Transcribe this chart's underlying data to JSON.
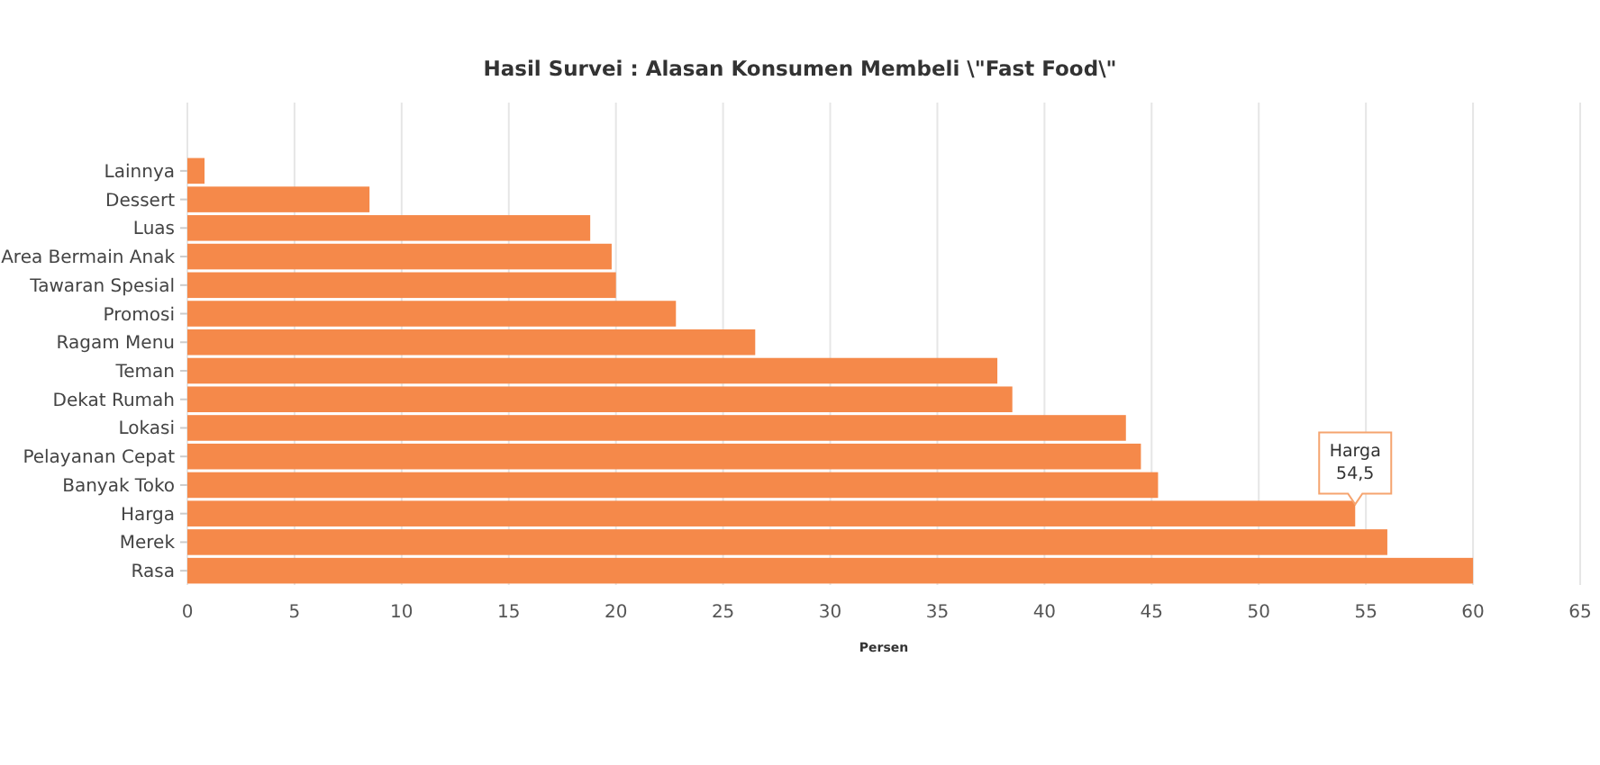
{
  "chart_data": {
    "type": "bar",
    "orientation": "horizontal",
    "title": "Hasil Survei : Alasan Konsumen Membeli \\\"Fast Food\\\"",
    "xlabel": "Persen",
    "categories": [
      "Lainnya",
      "Dessert",
      "Luas",
      "Area Bermain Anak",
      "Tawaran Spesial",
      "Promosi",
      "Ragam Menu",
      "Teman",
      "Dekat Rumah",
      "Lokasi",
      "Pelayanan Cepat",
      "Banyak Toko",
      "Harga",
      "Merek",
      "Rasa"
    ],
    "values": [
      0.8,
      8.5,
      18.8,
      19.8,
      20.0,
      22.8,
      26.5,
      37.8,
      38.5,
      43.8,
      44.5,
      45.3,
      54.5,
      56.0,
      60
    ],
    "color": "#f5894a",
    "xlim": [
      0,
      65
    ],
    "xticks": [
      0,
      5,
      10,
      15,
      20,
      25,
      30,
      35,
      40,
      45,
      50,
      55,
      60,
      65
    ],
    "grid": "x",
    "annotations": [
      {
        "text": "Harga\n54,5",
        "x": 54.5,
        "y": "Harga"
      }
    ]
  }
}
